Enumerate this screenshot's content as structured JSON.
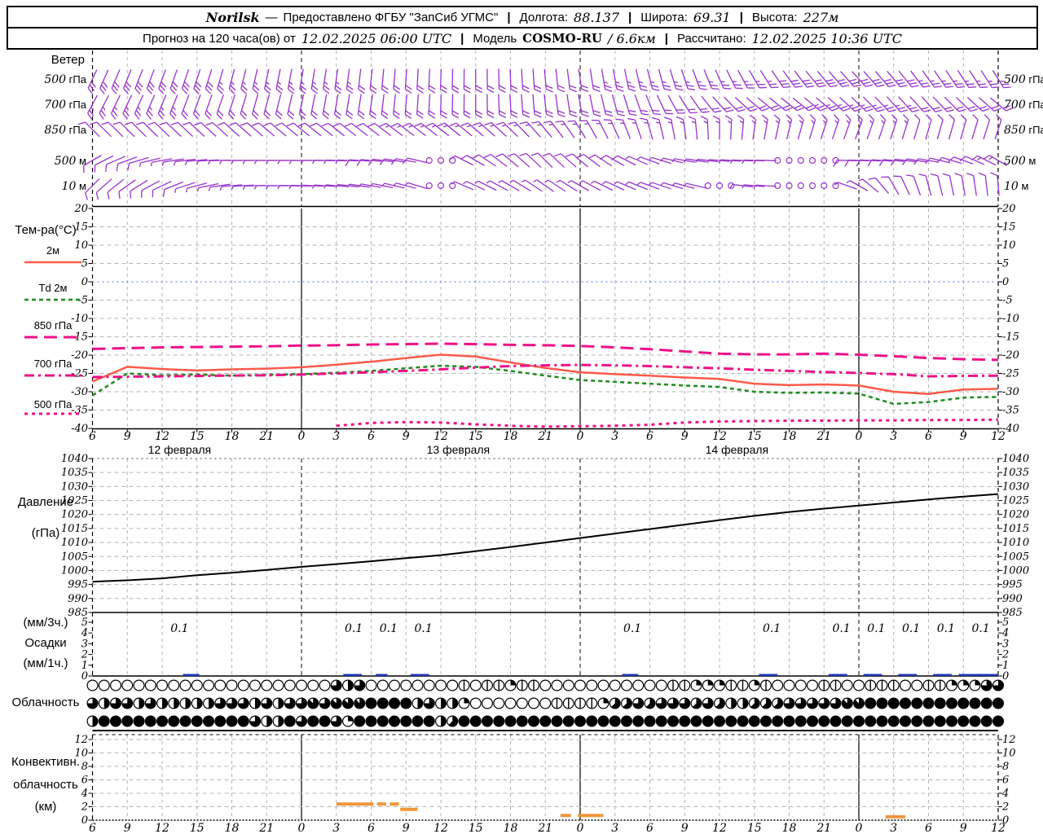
{
  "header": {
    "station": "Norilsk",
    "separator": "—",
    "provider": "Предоставлено ФГБУ \"ЗапСиб УГМС\"",
    "pipe": "|",
    "lon_label": "Долгота:",
    "lon": "88.137",
    "lat_label": "Широта:",
    "lat": "69.31",
    "alt_label": "Высота:",
    "alt": "227м",
    "forecast_label": "Прогноз на 120 часа(ов) от",
    "forecast_time": "12.02.2025 06:00 UTC",
    "model_label": "Модель",
    "model": "COSMO-RU",
    "model_res": "/ 6.6км",
    "calc_label": "Рассчитано:",
    "calc_time": "12.02.2025 10:36 UTC"
  },
  "colors": {
    "wind": "#9933cc",
    "t2m": "#ff5a4b",
    "td2m": "#1f8c1f",
    "pink": "#ee1188",
    "pressure_line": "#000000",
    "precip_bar": "#2233bb",
    "zero_line": "#5566ff",
    "convective": "#f0963c",
    "grid": "#b4b4b4",
    "axis": "#000000"
  },
  "chart_data": {
    "type": "meteogram",
    "x_axis": {
      "start_hour": 6,
      "total_hours": 78,
      "step_hours": 3,
      "date_labels": [
        {
          "text": "12 февраля",
          "t": 7.5
        },
        {
          "text": "13 февраля",
          "t": 31.5
        },
        {
          "text": "14 февраля",
          "t": 55.5
        }
      ]
    },
    "wind": {
      "title": "Ветер",
      "levels": [
        {
          "num": "500",
          "unit": "гПа",
          "y": 97,
          "dir": [
            25,
            22,
            20,
            18,
            15,
            12,
            10,
            8,
            6,
            4,
            2,
            0,
            -2,
            -5,
            -8,
            -10,
            -14,
            -18,
            -24,
            -30,
            -36,
            -40,
            -42,
            -40,
            -36,
            -33,
            -32
          ],
          "spd": [
            3,
            3,
            3,
            3,
            2.5,
            2.5,
            2.5,
            2.5,
            2,
            2,
            2,
            2,
            2,
            2,
            2,
            2.5,
            2.5,
            2.5,
            2.5,
            2.5,
            3,
            3,
            3,
            3,
            2.5,
            2.5,
            2.5
          ]
        },
        {
          "num": "700",
          "unit": "гПа",
          "y": 128,
          "dir": [
            28,
            25,
            22,
            20,
            18,
            15,
            12,
            10,
            8,
            5,
            2,
            0,
            -3,
            -6,
            -10,
            -15,
            -22,
            -32,
            -42,
            -50,
            -52,
            -50,
            -46,
            -42,
            -42,
            -46,
            -50
          ],
          "spd": [
            2.5,
            2.5,
            2.5,
            2,
            2,
            2,
            2,
            2,
            2,
            2,
            2,
            2,
            2,
            2,
            2,
            2,
            2,
            2,
            2,
            2,
            2,
            2.5,
            2.5,
            2.5,
            2,
            2,
            2
          ]
        },
        {
          "num": "850",
          "unit": "гПа",
          "y": 159,
          "dir": [
            135,
            135,
            134,
            133,
            132,
            130,
            129,
            128,
            127,
            127,
            128,
            130,
            134,
            140,
            148,
            156,
            164,
            172,
            180,
            188,
            194,
            198,
            200,
            198,
            196,
            196,
            198
          ],
          "spd": [
            1,
            1,
            1,
            1,
            1,
            1,
            1,
            1,
            1,
            1.5,
            1.5,
            1.5,
            1.5,
            1.5,
            1.5,
            1.5,
            1.5,
            1.5,
            1.5,
            1.5,
            1.5,
            1.5,
            1.5,
            1.5,
            1,
            1,
            1
          ]
        },
        {
          "num": "500",
          "unit": "м",
          "y": 197,
          "dir": [
            60,
            70,
            80,
            85,
            90,
            90,
            90,
            92,
            95,
            100,
            110,
            120,
            130,
            135,
            130,
            120,
            110,
            100,
            95,
            92,
            90,
            90,
            92,
            95,
            100,
            110,
            120
          ],
          "spd": [
            1,
            1,
            0.5,
            0.5,
            0.5,
            0.5,
            0.5,
            0.5,
            1,
            1,
            0,
            1,
            1,
            1,
            1,
            1,
            0.5,
            0.5,
            0.5,
            0.5,
            0,
            0,
            1,
            1,
            1,
            1,
            1.5
          ]
        },
        {
          "num": "10",
          "unit": "м",
          "y": 228,
          "dir": [
            45,
            55,
            65,
            75,
            85,
            90,
            92,
            95,
            100,
            105,
            110,
            115,
            120,
            125,
            120,
            115,
            110,
            105,
            100,
            95,
            90,
            88,
            120,
            150,
            165,
            170,
            175
          ],
          "spd": [
            1,
            1,
            1,
            0.5,
            0.5,
            0.5,
            0.5,
            0.5,
            0.5,
            0.5,
            0,
            0.5,
            0.5,
            0.5,
            0.5,
            0.5,
            0.5,
            0.5,
            0,
            0.5,
            0,
            0,
            0.5,
            1,
            1,
            1,
            1
          ]
        }
      ]
    },
    "temperature": {
      "axis_label": "Тем-ра(°C)",
      "ylim": [
        -40,
        20
      ],
      "ticks": [
        20,
        15,
        10,
        5,
        0,
        -5,
        -10,
        -15,
        -20,
        -25,
        -30,
        -35,
        -40
      ],
      "series": [
        {
          "name": "2м",
          "style": "solid",
          "color_key": "t2m",
          "width": 2.5,
          "values": [
            -27.2,
            -23.2,
            -23.8,
            -24.2,
            -23.9,
            -23.7,
            -23.3,
            -22.6,
            -21.8,
            -20.8,
            -19.9,
            -20.4,
            -22.0,
            -23.5,
            -24.7,
            -25.2,
            -25.6,
            -26.1,
            -26.5,
            -27.8,
            -28.2,
            -28.0,
            -28.3,
            -30.0,
            -30.6,
            -29.4,
            -29.2
          ]
        },
        {
          "name": "Td 2м",
          "style": "dashed",
          "color_key": "td2m",
          "width": 2.5,
          "values": [
            -31.0,
            -25.0,
            -25.5,
            -25.3,
            -25.6,
            -25.4,
            -25.2,
            -24.8,
            -24.3,
            -23.6,
            -22.9,
            -23.2,
            -24.3,
            -25.6,
            -26.8,
            -27.3,
            -27.8,
            -28.3,
            -28.7,
            -30.0,
            -30.3,
            -30.2,
            -30.5,
            -33.3,
            -32.8,
            -31.6,
            -31.4
          ]
        },
        {
          "name": "850 гПа",
          "style": "longdash",
          "color_key": "pink",
          "width": 3,
          "values": [
            -18.3,
            -18.1,
            -17.9,
            -17.8,
            -17.7,
            -17.6,
            -17.4,
            -17.3,
            -17.1,
            -17.0,
            -16.9,
            -17.0,
            -17.2,
            -17.3,
            -17.5,
            -17.9,
            -18.4,
            -19.0,
            -19.6,
            -19.8,
            -19.8,
            -19.6,
            -19.9,
            -20.3,
            -20.8,
            -21.1,
            -21.3
          ]
        },
        {
          "name": "700 гПа",
          "style": "dashdot",
          "color_key": "pink",
          "width": 3,
          "values": [
            -26.0,
            -25.9,
            -25.8,
            -25.7,
            -25.6,
            -25.5,
            -25.3,
            -25.0,
            -24.7,
            -24.3,
            -23.9,
            -23.4,
            -23.0,
            -22.8,
            -22.7,
            -22.8,
            -23.0,
            -23.3,
            -23.6,
            -24.0,
            -24.3,
            -24.6,
            -24.9,
            -25.2,
            -25.8,
            -25.7,
            -25.6
          ]
        },
        {
          "name": "500 гПа",
          "style": "shortdash",
          "color_key": "pink",
          "width": 3,
          "values": [
            null,
            null,
            null,
            null,
            null,
            null,
            null,
            -39.3,
            -38.5,
            -38.3,
            -38.4,
            -38.9,
            -39.3,
            -39.5,
            -39.4,
            -39.3,
            -39.0,
            -38.4,
            -38.1,
            -38.0,
            -37.9,
            -37.9,
            -37.8,
            -37.8,
            -37.7,
            -37.7,
            -37.6
          ]
        }
      ]
    },
    "pressure": {
      "label1": "Давление",
      "label2": "(гПа)",
      "ylim": [
        985,
        1040
      ],
      "ticks": [
        1040,
        1035,
        1030,
        1025,
        1020,
        1015,
        1010,
        1005,
        1000,
        995,
        990,
        985
      ],
      "values": [
        996.0,
        996.5,
        997.2,
        998.3,
        999.2,
        1000.2,
        1001.3,
        1002.3,
        1003.3,
        1004.4,
        1005.5,
        1006.9,
        1008.4,
        1010.0,
        1011.6,
        1013.2,
        1014.8,
        1016.4,
        1018.0,
        1019.5,
        1020.9,
        1022.1,
        1023.2,
        1024.3,
        1025.4,
        1026.4,
        1027.3
      ]
    },
    "precip": {
      "label1": "(мм/3ч.)",
      "label2": "Осадки",
      "label3": "(мм/1ч.)",
      "ticks": [
        5,
        4,
        3,
        2,
        1,
        0
      ],
      "amount_labels": [
        {
          "t": 7.5,
          "v": "0.1"
        },
        {
          "t": 22.5,
          "v": "0.1"
        },
        {
          "t": 25.5,
          "v": "0.1"
        },
        {
          "t": 28.5,
          "v": "0.1"
        },
        {
          "t": 46.5,
          "v": "0.1"
        },
        {
          "t": 58.5,
          "v": "0.1"
        },
        {
          "t": 64.5,
          "v": "0.1"
        },
        {
          "t": 67.5,
          "v": "0.1"
        },
        {
          "t": 70.5,
          "v": "0.1"
        },
        {
          "t": 73.5,
          "v": "0.1"
        },
        {
          "t": 76.5,
          "v": "0.1"
        }
      ],
      "bars": [
        [
          7.8,
          9.2
        ],
        [
          21.6,
          23.2
        ],
        [
          24.4,
          25.4
        ],
        [
          27.4,
          29.0
        ],
        [
          45.6,
          47.0
        ],
        [
          57.4,
          59.0
        ],
        [
          63.4,
          65.0
        ],
        [
          66.4,
          68.0
        ],
        [
          69.4,
          71.0
        ],
        [
          72.4,
          74.0
        ],
        [
          74.6,
          78.0
        ]
      ]
    },
    "cloud": {
      "label": "Облачность",
      "rows": [
        "0000000000000000000006460000000010112110000000000011222112100001100111001122266",
        "6466464444466646466767778888464420000000111125565666565445556666677888888888888",
        "4888888888888864486886288888884588888888888888888888888888888888888888888888888"
      ]
    },
    "convective": {
      "label1": "Конвективн.",
      "label2": "облачность",
      "label3": "(км)",
      "ylim": [
        0,
        12
      ],
      "ticks": [
        12,
        10,
        8,
        6,
        4,
        2,
        0
      ],
      "bars": [
        {
          "t1": 21.0,
          "t2": 24.2,
          "h": 2.4
        },
        {
          "t1": 24.5,
          "t2": 25.3,
          "h": 2.4
        },
        {
          "t1": 25.6,
          "t2": 26.4,
          "h": 2.4
        },
        {
          "t1": 26.5,
          "t2": 28.0,
          "h": 1.6
        },
        {
          "t1": 40.3,
          "t2": 41.2,
          "h": 0.7
        },
        {
          "t1": 41.8,
          "t2": 44.0,
          "h": 0.7
        },
        {
          "t1": 68.3,
          "t2": 70.0,
          "h": 0.5
        }
      ]
    }
  }
}
